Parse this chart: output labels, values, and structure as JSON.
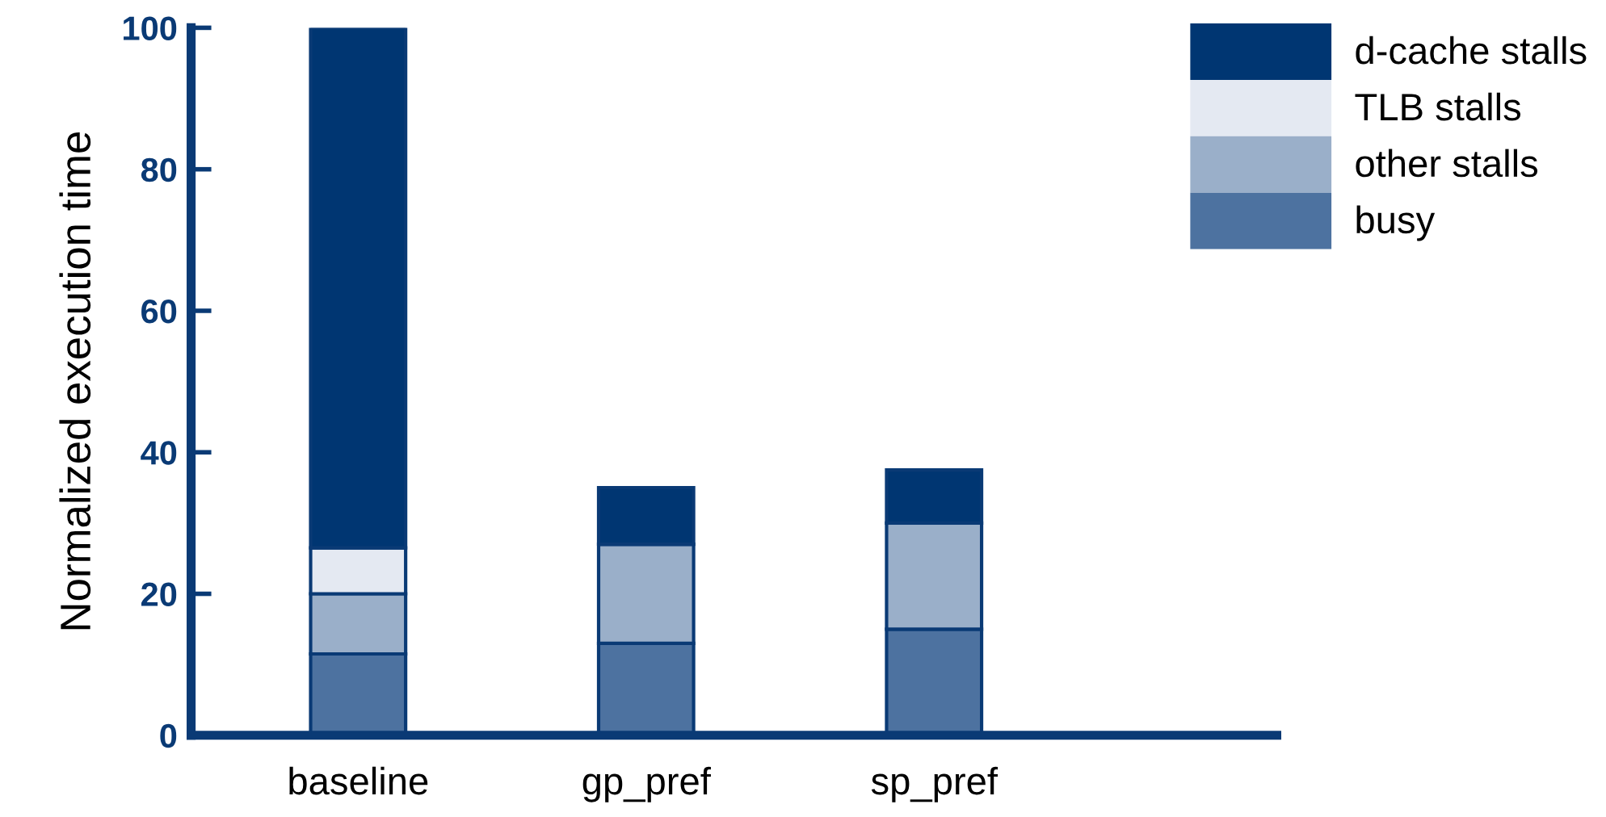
{
  "chart_data": {
    "type": "bar",
    "stacked": true,
    "ylabel": "Normalized execution time",
    "categories": [
      "baseline",
      "gp_pref",
      "sp_pref"
    ],
    "series": [
      {
        "name": "busy",
        "color": "#4d72a0",
        "values": [
          11.5,
          13,
          15
        ]
      },
      {
        "name": "other stalls",
        "color": "#9aafc9",
        "values": [
          8.5,
          14,
          15
        ]
      },
      {
        "name": "TLB stalls",
        "color": "#e4e9f2",
        "values": [
          6.5,
          0,
          0
        ]
      },
      {
        "name": "d-cache stalls",
        "color": "#003672",
        "values": [
          73.5,
          8,
          7.5
        ]
      }
    ],
    "ylim": [
      0,
      100
    ],
    "yticks": [
      0,
      20,
      40,
      60,
      80,
      100
    ],
    "grid": false,
    "legend": "top right"
  }
}
